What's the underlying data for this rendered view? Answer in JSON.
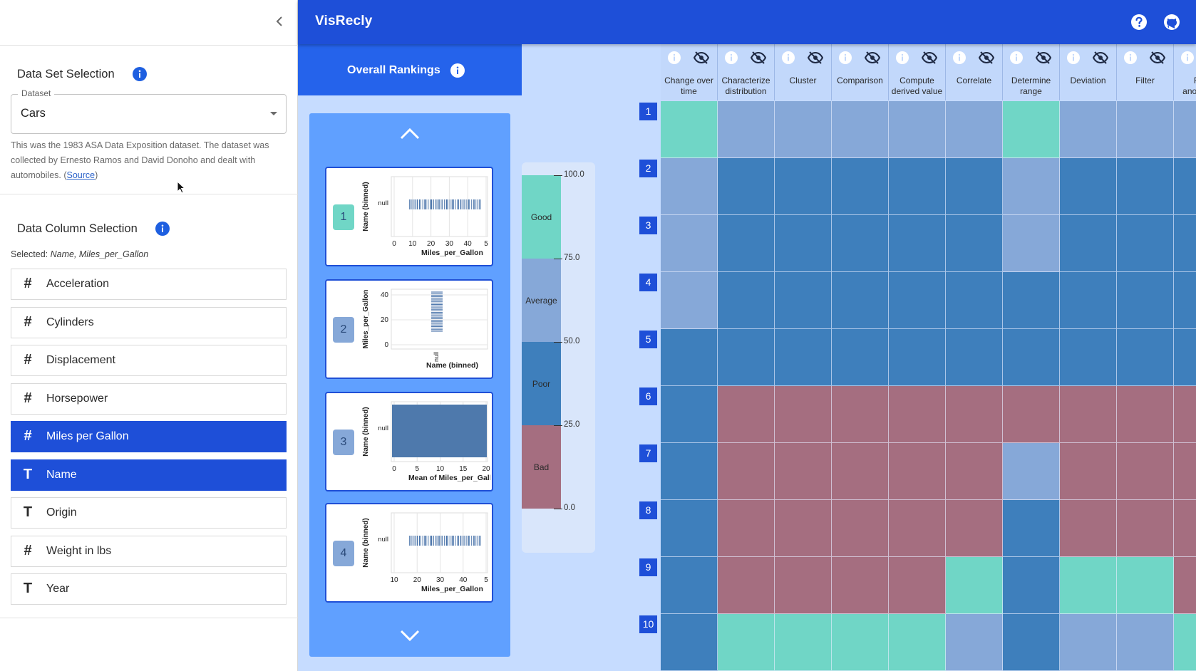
{
  "app": {
    "title": "VisRecly"
  },
  "sidebar": {
    "dataset_section": {
      "heading": "Data Set Selection",
      "field_label": "Dataset",
      "value": "Cars",
      "description": "This was the 1983 ASA Data Exposition dataset. The dataset was collected by Ernesto Ramos and David Donoho and dealt with automobiles.",
      "source_link": "Source"
    },
    "column_section": {
      "heading": "Data Column Selection",
      "selected_prefix": "Selected:",
      "selected_value": "Name, Miles_per_Gallon",
      "columns": [
        {
          "type_glyph": "#",
          "label": "Acceleration",
          "selected": false
        },
        {
          "type_glyph": "#",
          "label": "Cylinders",
          "selected": false
        },
        {
          "type_glyph": "#",
          "label": "Displacement",
          "selected": false
        },
        {
          "type_glyph": "#",
          "label": "Horsepower",
          "selected": false
        },
        {
          "type_glyph": "#",
          "label": "Miles per Gallon",
          "selected": true
        },
        {
          "type_glyph": "T",
          "label": "Name",
          "selected": true
        },
        {
          "type_glyph": "T",
          "label": "Origin",
          "selected": false
        },
        {
          "type_glyph": "#",
          "label": "Weight in lbs",
          "selected": false
        },
        {
          "type_glyph": "T",
          "label": "Year",
          "selected": false
        }
      ]
    }
  },
  "rankings": {
    "title": "Overall Rankings",
    "items": [
      {
        "rank": "1",
        "quality": "good",
        "chart": {
          "type": "tick",
          "x_label": "Miles_per_Gallon",
          "y_label": "Name (binned)",
          "y_tick": "null",
          "x_ticks": [
            "0",
            "10",
            "20",
            "30",
            "40",
            "5"
          ]
        }
      },
      {
        "rank": "2",
        "quality": "average",
        "chart": {
          "type": "tick",
          "x_label": "Name (binned)",
          "y_label": "Miles_per_Gallon",
          "x_tick": "null",
          "y_ticks": [
            "40",
            "20",
            "0"
          ]
        }
      },
      {
        "rank": "3",
        "quality": "average",
        "chart": {
          "type": "bar",
          "x_label": "Mean of Miles_per_Gallo",
          "y_label": "Name (binned)",
          "y_tick": "null",
          "x_ticks": [
            "0",
            "5",
            "10",
            "15",
            "20"
          ]
        }
      },
      {
        "rank": "4",
        "quality": "average",
        "chart": {
          "type": "tick",
          "x_label": "Miles_per_Gallon",
          "y_label": "Name (binned)",
          "y_tick": "null",
          "x_ticks": [
            "10",
            "20",
            "30",
            "40",
            "5"
          ]
        }
      }
    ]
  },
  "legend": {
    "segments": [
      {
        "label": "Good",
        "color": "#70d6c6"
      },
      {
        "label": "Average",
        "color": "#86a8d8"
      },
      {
        "label": "Poor",
        "color": "#3e7fbc"
      },
      {
        "label": "Bad",
        "color": "#a56e80"
      }
    ],
    "ticks": [
      "100.0",
      "75.0",
      "50.0",
      "25.0",
      "0.0"
    ]
  },
  "matrix": {
    "colors": {
      "G": "#70d6c6",
      "A": "#86a8d8",
      "P": "#3e7fbc",
      "B": "#a56e80"
    },
    "tasks": [
      "Change over time",
      "Characterize distribution",
      "Cluster",
      "Comparison",
      "Compute derived value",
      "Correlate",
      "Determine range",
      "Deviation",
      "Filter",
      "Find anomalies"
    ],
    "row_labels": [
      "1",
      "2",
      "3",
      "4",
      "5",
      "6",
      "7",
      "8",
      "9",
      "10"
    ],
    "grid": [
      [
        "G",
        "A",
        "A",
        "A",
        "A",
        "A",
        "G",
        "A",
        "A",
        "A"
      ],
      [
        "A",
        "P",
        "P",
        "P",
        "P",
        "P",
        "A",
        "P",
        "P",
        "P"
      ],
      [
        "A",
        "P",
        "P",
        "P",
        "P",
        "P",
        "A",
        "P",
        "P",
        "P"
      ],
      [
        "A",
        "P",
        "P",
        "P",
        "P",
        "P",
        "P",
        "P",
        "P",
        "P"
      ],
      [
        "P",
        "P",
        "P",
        "P",
        "P",
        "P",
        "P",
        "P",
        "P",
        "P"
      ],
      [
        "P",
        "B",
        "B",
        "B",
        "B",
        "B",
        "B",
        "B",
        "B",
        "B"
      ],
      [
        "P",
        "B",
        "B",
        "B",
        "B",
        "B",
        "A",
        "B",
        "B",
        "B"
      ],
      [
        "P",
        "B",
        "B",
        "B",
        "B",
        "B",
        "P",
        "B",
        "B",
        "B"
      ],
      [
        "P",
        "B",
        "B",
        "B",
        "B",
        "G",
        "P",
        "G",
        "G",
        "B"
      ],
      [
        "P",
        "G",
        "G",
        "G",
        "G",
        "A",
        "P",
        "A",
        "A",
        "G"
      ]
    ]
  }
}
